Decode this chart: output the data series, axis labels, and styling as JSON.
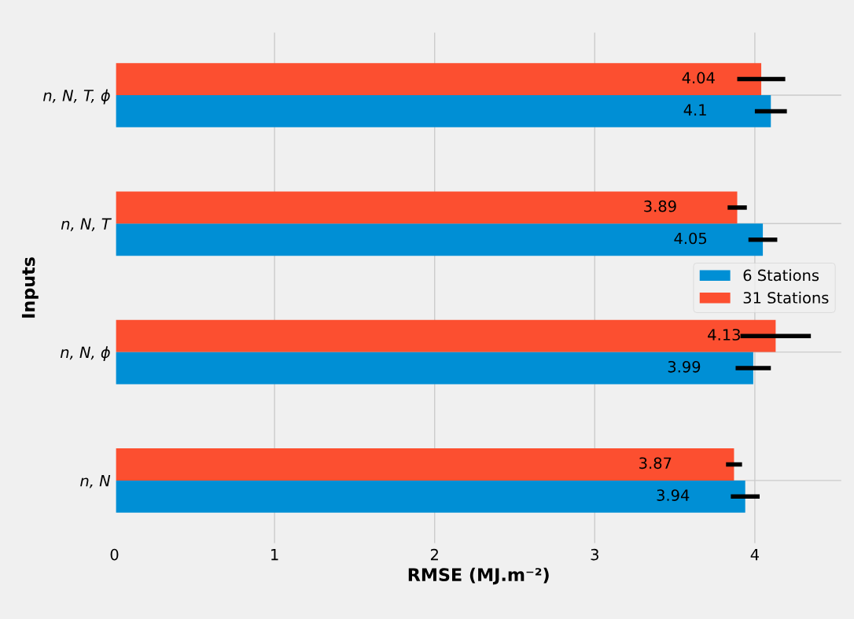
{
  "chart_data": {
    "type": "bar",
    "orientation": "horizontal",
    "xlabel": "RMSE (MJ.m⁻²)",
    "ylabel": "Inputs",
    "categories": [
      "n, N, T, ϕ",
      "n, N, T",
      "n, N, ϕ",
      "n, N"
    ],
    "series": [
      {
        "name": "6 Stations",
        "color": "#008fd5",
        "values": [
          4.1,
          4.05,
          3.99,
          3.94
        ],
        "errors": [
          0.1,
          0.09,
          0.11,
          0.09
        ]
      },
      {
        "name": "31 Stations",
        "color": "#fc4f30",
        "values": [
          4.04,
          3.89,
          4.13,
          3.87
        ],
        "errors": [
          0.15,
          0.06,
          0.22,
          0.05
        ]
      }
    ],
    "xlim": [
      0,
      4.55
    ],
    "xticks": [
      0,
      1,
      2,
      3,
      4
    ],
    "grid": true,
    "legend": "right",
    "data_labels": true
  }
}
